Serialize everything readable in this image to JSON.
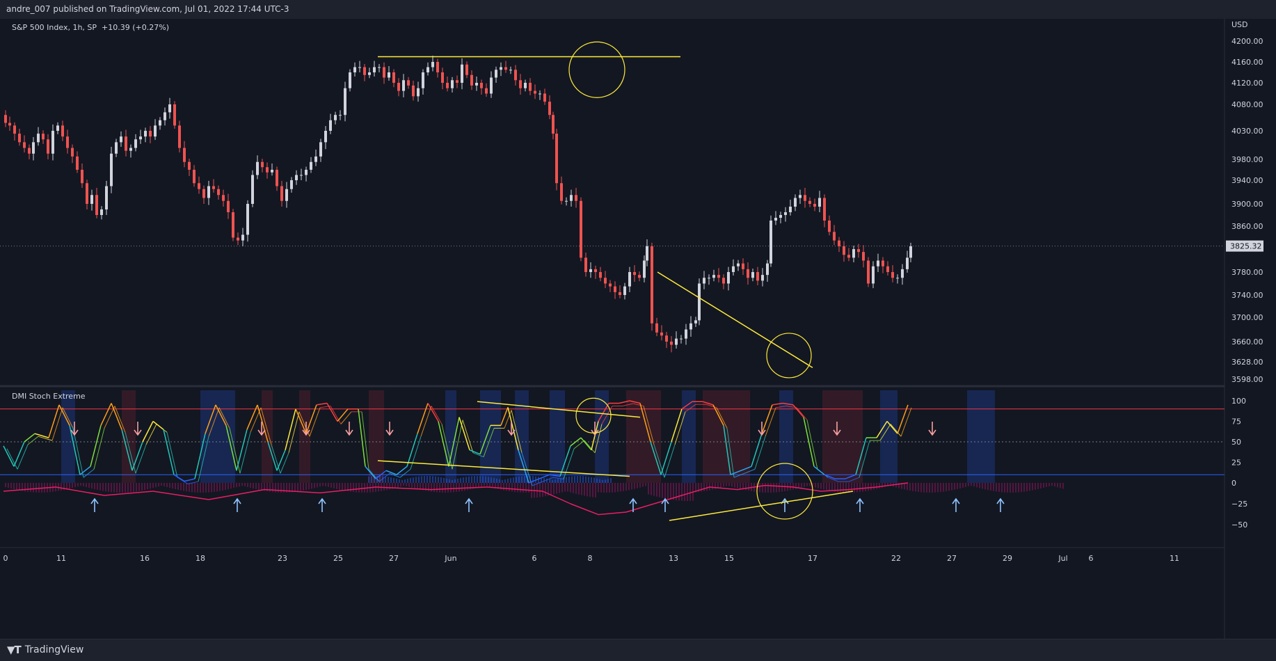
{
  "header": {
    "publish_line": "andre_007 published on TradingView.com, Jul 01, 2022 17:44 UTC-3"
  },
  "footer": {
    "brand": "TradingView"
  },
  "colors": {
    "background": "#131722",
    "up": "#d1d4dc",
    "down": "#ef5350",
    "trendline": "#ffeb3b",
    "upper_band": "#f23645",
    "lower_band": "#2962ff",
    "hist": "#b5176d"
  },
  "chart_data": [
    {
      "type": "candlestick",
      "title": "S&P 500 Index, 1h, SP",
      "change": "+10.39 (+0.27%)",
      "currency": "USD",
      "last_price": "3825.32",
      "y_ticks": [
        "4200.00",
        "4160.00",
        "4120.00",
        "4080.00",
        "4030.00",
        "3980.00",
        "3940.00",
        "3900.00",
        "3860.00",
        "3780.00",
        "3740.00",
        "3700.00",
        "3660.00",
        "3628.00",
        "3598.00"
      ],
      "ylim": [
        3580,
        4215
      ],
      "x_ticks": [
        "0",
        "11",
        "16",
        "18",
        "23",
        "25",
        "27",
        "Jun",
        "6",
        "8",
        "13",
        "15",
        "17",
        "22",
        "27",
        "29",
        "Jul",
        "6",
        "11"
      ],
      "close_path": [
        [
          1,
          4060
        ],
        [
          8,
          4045
        ],
        [
          14,
          4040
        ],
        [
          21,
          4025
        ],
        [
          28,
          4010
        ],
        [
          35,
          4000
        ],
        [
          42,
          3990
        ],
        [
          48,
          4010
        ],
        [
          55,
          4025
        ],
        [
          62,
          4015
        ],
        [
          69,
          3990
        ],
        [
          76,
          4030
        ],
        [
          83,
          4040
        ],
        [
          90,
          4020
        ],
        [
          97,
          4000
        ],
        [
          104,
          3985
        ],
        [
          111,
          3960
        ],
        [
          118,
          3935
        ],
        [
          125,
          3900
        ],
        [
          132,
          3915
        ],
        [
          139,
          3880
        ],
        [
          146,
          3890
        ],
        [
          153,
          3930
        ],
        [
          160,
          3990
        ],
        [
          167,
          4010
        ],
        [
          174,
          4020
        ],
        [
          181,
          3995
        ],
        [
          188,
          4000
        ],
        [
          195,
          4015
        ],
        [
          202,
          4020
        ],
        [
          209,
          4030
        ],
        [
          216,
          4020
        ],
        [
          223,
          4040
        ],
        [
          230,
          4050
        ],
        [
          237,
          4065
        ],
        [
          244,
          4080
        ],
        [
          251,
          4040
        ],
        [
          258,
          4000
        ],
        [
          265,
          3975
        ],
        [
          272,
          3960
        ],
        [
          279,
          3935
        ],
        [
          286,
          3925
        ],
        [
          293,
          3910
        ],
        [
          300,
          3930
        ],
        [
          307,
          3925
        ],
        [
          314,
          3915
        ],
        [
          321,
          3905
        ],
        [
          328,
          3885
        ],
        [
          335,
          3840
        ],
        [
          342,
          3835
        ],
        [
          349,
          3845
        ],
        [
          356,
          3900
        ],
        [
          363,
          3950
        ],
        [
          370,
          3975
        ],
        [
          377,
          3965
        ],
        [
          384,
          3955
        ],
        [
          391,
          3960
        ],
        [
          398,
          3930
        ],
        [
          405,
          3905
        ],
        [
          412,
          3925
        ],
        [
          419,
          3940
        ],
        [
          426,
          3950
        ],
        [
          433,
          3950
        ],
        [
          440,
          3960
        ],
        [
          447,
          3975
        ],
        [
          454,
          3985
        ],
        [
          461,
          4010
        ],
        [
          468,
          4030
        ],
        [
          475,
          4050
        ],
        [
          482,
          4060
        ],
        [
          489,
          4060
        ],
        [
          496,
          4110
        ],
        [
          503,
          4140
        ],
        [
          510,
          4150
        ],
        [
          517,
          4150
        ],
        [
          524,
          4135
        ],
        [
          531,
          4140
        ],
        [
          538,
          4150
        ],
        [
          545,
          4150
        ],
        [
          552,
          4130
        ],
        [
          559,
          4140
        ],
        [
          566,
          4120
        ],
        [
          573,
          4105
        ],
        [
          580,
          4125
        ],
        [
          587,
          4115
        ],
        [
          594,
          4095
        ],
        [
          601,
          4110
        ],
        [
          608,
          4140
        ],
        [
          615,
          4150
        ],
        [
          622,
          4160
        ],
        [
          629,
          4140
        ],
        [
          636,
          4120
        ],
        [
          643,
          4110
        ],
        [
          650,
          4125
        ],
        [
          657,
          4120
        ],
        [
          664,
          4155
        ],
        [
          671,
          4135
        ],
        [
          678,
          4115
        ],
        [
          685,
          4120
        ],
        [
          692,
          4110
        ],
        [
          699,
          4100
        ],
        [
          706,
          4130
        ],
        [
          713,
          4145
        ],
        [
          720,
          4150
        ],
        [
          727,
          4145
        ],
        [
          734,
          4145
        ],
        [
          741,
          4125
        ],
        [
          748,
          4110
        ],
        [
          755,
          4120
        ],
        [
          762,
          4105
        ],
        [
          769,
          4100
        ],
        [
          776,
          4100
        ],
        [
          783,
          4085
        ],
        [
          790,
          4060
        ],
        [
          795,
          4025
        ],
        [
          800,
          3935
        ],
        [
          807,
          3905
        ],
        [
          814,
          3905
        ],
        [
          821,
          3915
        ],
        [
          828,
          3905
        ],
        [
          835,
          3805
        ],
        [
          842,
          3780
        ],
        [
          849,
          3785
        ],
        [
          856,
          3780
        ],
        [
          863,
          3770
        ],
        [
          870,
          3760
        ],
        [
          877,
          3755
        ],
        [
          884,
          3745
        ],
        [
          891,
          3740
        ],
        [
          898,
          3755
        ],
        [
          905,
          3780
        ],
        [
          912,
          3775
        ],
        [
          919,
          3770
        ],
        [
          926,
          3800
        ],
        [
          930,
          3825
        ],
        [
          937,
          3690
        ],
        [
          944,
          3675
        ],
        [
          951,
          3670
        ],
        [
          958,
          3660
        ],
        [
          965,
          3655
        ],
        [
          972,
          3665
        ],
        [
          979,
          3665
        ],
        [
          986,
          3680
        ],
        [
          993,
          3690
        ],
        [
          1000,
          3695
        ],
        [
          1005,
          3760
        ],
        [
          1012,
          3770
        ],
        [
          1019,
          3770
        ],
        [
          1026,
          3775
        ],
        [
          1033,
          3770
        ],
        [
          1040,
          3760
        ],
        [
          1047,
          3780
        ],
        [
          1054,
          3790
        ],
        [
          1061,
          3795
        ],
        [
          1068,
          3785
        ],
        [
          1075,
          3770
        ],
        [
          1082,
          3780
        ],
        [
          1089,
          3765
        ],
        [
          1096,
          3775
        ],
        [
          1103,
          3795
        ],
        [
          1108,
          3870
        ],
        [
          1115,
          3875
        ],
        [
          1122,
          3880
        ],
        [
          1129,
          3885
        ],
        [
          1136,
          3895
        ],
        [
          1143,
          3910
        ],
        [
          1150,
          3915
        ],
        [
          1157,
          3905
        ],
        [
          1164,
          3900
        ],
        [
          1171,
          3895
        ],
        [
          1178,
          3910
        ],
        [
          1185,
          3870
        ],
        [
          1192,
          3850
        ],
        [
          1199,
          3835
        ],
        [
          1206,
          3825
        ],
        [
          1213,
          3810
        ],
        [
          1220,
          3805
        ],
        [
          1227,
          3820
        ],
        [
          1234,
          3815
        ],
        [
          1241,
          3800
        ],
        [
          1248,
          3760
        ],
        [
          1255,
          3790
        ],
        [
          1262,
          3800
        ],
        [
          1269,
          3790
        ],
        [
          1276,
          3780
        ],
        [
          1283,
          3770
        ],
        [
          1290,
          3770
        ],
        [
          1297,
          3785
        ],
        [
          1304,
          3805
        ],
        [
          1309,
          3825
        ]
      ],
      "annotations": [
        {
          "type": "trendline",
          "from": [
            "25",
            "4170"
          ],
          "to": [
            "10",
            "4170"
          ]
        },
        {
          "type": "trendline",
          "from": [
            "12",
            "3780"
          ],
          "to": [
            "18",
            "3618"
          ]
        },
        {
          "type": "circle",
          "at": [
            "8",
            "4145"
          ]
        },
        {
          "type": "circle",
          "at": [
            "17",
            "3638"
          ]
        }
      ]
    },
    {
      "type": "line",
      "title": "DMI Stoch Extreme",
      "y_ticks": [
        "100",
        "75",
        "50",
        "25",
        "0",
        "−25",
        "−50"
      ],
      "ylim": [
        -52,
        105
      ],
      "levels": {
        "upper": 90,
        "mid": 50,
        "lower": 10,
        "zero": 0
      },
      "series": [
        {
          "values": [
            [
              5,
              45
            ],
            [
              20,
              20
            ],
            [
              35,
              50
            ],
            [
              50,
              60
            ],
            [
              70,
              55
            ],
            [
              85,
              95
            ],
            [
              100,
              70
            ],
            [
              115,
              10
            ],
            [
              130,
              20
            ],
            [
              145,
              70
            ],
            [
              160,
              97
            ],
            [
              175,
              65
            ],
            [
              190,
              15
            ],
            [
              205,
              50
            ],
            [
              220,
              75
            ],
            [
              235,
              65
            ],
            [
              250,
              10
            ],
            [
              265,
              2
            ],
            [
              280,
              5
            ],
            [
              295,
              60
            ],
            [
              310,
              95
            ],
            [
              325,
              70
            ],
            [
              340,
              15
            ],
            [
              355,
              65
            ],
            [
              370,
              95
            ],
            [
              385,
              50
            ],
            [
              398,
              15
            ],
            [
              410,
              40
            ],
            [
              425,
              90
            ],
            [
              440,
              60
            ],
            [
              455,
              95
            ],
            [
              470,
              97
            ],
            [
              485,
              75
            ],
            [
              500,
              90
            ],
            [
              515,
              90
            ],
            [
              525,
              20
            ],
            [
              540,
              5
            ],
            [
              555,
              15
            ],
            [
              570,
              10
            ],
            [
              585,
              20
            ],
            [
              600,
              60
            ],
            [
              615,
              97
            ],
            [
              630,
              75
            ],
            [
              645,
              20
            ],
            [
              660,
              80
            ],
            [
              675,
              40
            ],
            [
              690,
              35
            ],
            [
              705,
              70
            ],
            [
              720,
              70
            ],
            [
              730,
              92
            ],
            [
              745,
              40
            ],
            [
              760,
              0
            ],
            [
              775,
              5
            ],
            [
              790,
              10
            ],
            [
              805,
              8
            ],
            [
              820,
              45
            ],
            [
              835,
              55
            ],
            [
              850,
              40
            ],
            [
              860,
              75
            ],
            [
              875,
              97
            ],
            [
              890,
              97
            ],
            [
              905,
              100
            ],
            [
              920,
              97
            ],
            [
              935,
              50
            ],
            [
              950,
              10
            ],
            [
              965,
              50
            ],
            [
              980,
              90
            ],
            [
              995,
              99
            ],
            [
              1010,
              99
            ],
            [
              1025,
              95
            ],
            [
              1040,
              70
            ],
            [
              1050,
              10
            ],
            [
              1065,
              15
            ],
            [
              1080,
              20
            ],
            [
              1095,
              60
            ],
            [
              1110,
              95
            ],
            [
              1125,
              97
            ],
            [
              1140,
              95
            ],
            [
              1155,
              80
            ],
            [
              1170,
              20
            ],
            [
              1185,
              10
            ],
            [
              1200,
              5
            ],
            [
              1215,
              5
            ],
            [
              1230,
              10
            ],
            [
              1245,
              55
            ],
            [
              1260,
              55
            ],
            [
              1275,
              75
            ],
            [
              1290,
              60
            ],
            [
              1305,
              95
            ]
          ]
        }
      ],
      "annotations": [
        {
          "type": "trendline",
          "from": [
            "6",
            "99"
          ],
          "to": [
            "10",
            "80"
          ]
        },
        {
          "type": "trendline",
          "from": [
            "25",
            "27"
          ],
          "to": [
            "10",
            "8"
          ]
        },
        {
          "type": "trendline",
          "from": [
            "13",
            "-45"
          ],
          "to": [
            "22",
            "-10"
          ]
        },
        {
          "type": "circle",
          "at": [
            "8",
            "82"
          ]
        },
        {
          "type": "circle",
          "at": [
            "17",
            "-10"
          ]
        }
      ]
    }
  ]
}
